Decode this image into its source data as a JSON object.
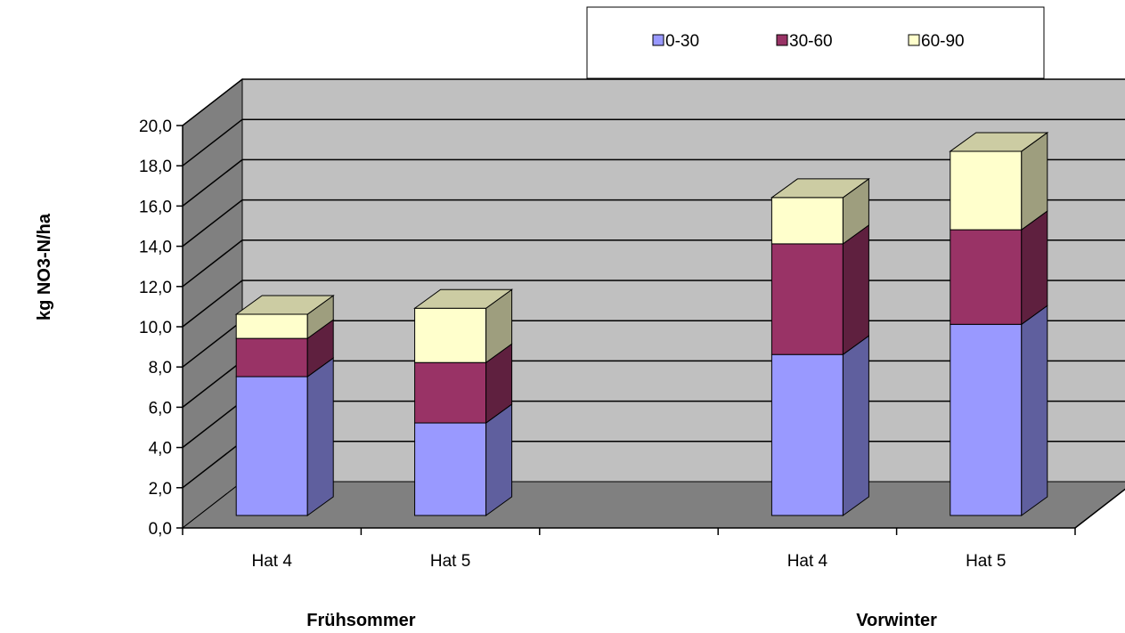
{
  "chart_data": {
    "type": "bar",
    "stacked": true,
    "three_d": true,
    "title": "",
    "ylabel": "kg NO3-N/ha",
    "ylim": [
      0,
      20
    ],
    "yticks": [
      "0,0",
      "2,0",
      "4,0",
      "6,0",
      "8,0",
      "10,0",
      "12,0",
      "14,0",
      "16,0",
      "18,0",
      "20,0"
    ],
    "grid": true,
    "legend_position": "top",
    "groups": [
      "Frühsommer",
      "Vorwinter"
    ],
    "categories": [
      "Hat 4",
      "Hat 5",
      "Hat 4",
      "Hat 5"
    ],
    "category_group": [
      0,
      0,
      1,
      1
    ],
    "series": [
      {
        "name": "0-30",
        "color": "#9999FF",
        "values": [
          6.9,
          4.6,
          8.0,
          9.5
        ]
      },
      {
        "name": "30-60",
        "color": "#993366",
        "values": [
          1.9,
          3.0,
          5.5,
          4.7
        ]
      },
      {
        "name": "60-90",
        "color": "#FFFFCC",
        "values": [
          1.2,
          2.7,
          2.3,
          3.9
        ]
      }
    ],
    "colors": {
      "wall": "#C0C0C0",
      "side_wall": "#808080",
      "floor": "#808080"
    }
  }
}
